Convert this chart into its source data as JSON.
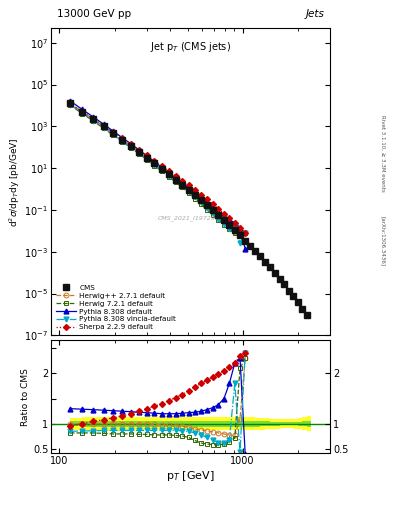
{
  "title_top": "13000 GeV pp",
  "title_right": "Jets",
  "plot_title": "Jet p$_T$ (CMS jets)",
  "xlabel": "p$_T$ [GeV]",
  "ylabel_main": "d$^2\\sigma$/dp$_T$dy [pb/GeV]",
  "ylabel_ratio": "Ratio to CMS",
  "cms_label": "CMS_2021_I1972985",
  "rivet_label": "Rivet 3.1.10, ≥ 3.3M events",
  "arxiv_label": "[arXiv:1306.3436]",
  "cms_x": [
    114,
    133,
    153,
    174,
    196,
    220,
    245,
    272,
    300,
    330,
    362,
    395,
    430,
    468,
    507,
    548,
    592,
    638,
    686,
    737,
    790,
    846,
    905,
    967,
    1032,
    1101,
    1172,
    1248,
    1327,
    1410,
    1497,
    1588,
    1684,
    1784,
    1890,
    2000,
    2116,
    2238
  ],
  "cms_y": [
    13000,
    5000,
    2200,
    1000,
    480,
    230,
    120,
    60,
    32,
    17,
    9.0,
    5.0,
    2.8,
    1.6,
    0.9,
    0.52,
    0.3,
    0.17,
    0.1,
    0.057,
    0.033,
    0.019,
    0.011,
    0.006,
    0.0034,
    0.0019,
    0.0011,
    0.0006,
    0.00033,
    0.00018,
    9.7e-05,
    5.2e-05,
    2.8e-05,
    1.4e-05,
    7.5e-06,
    3.8e-06,
    1.9e-06,
    9e-07
  ],
  "mc_x": [
    114,
    133,
    153,
    174,
    196,
    220,
    245,
    272,
    300,
    330,
    362,
    395,
    430,
    468,
    507,
    548,
    592,
    638,
    686,
    737,
    790,
    846,
    905,
    967,
    1032
  ],
  "herwig_pp_ratio": [
    1.0,
    1.0,
    1.0,
    1.0,
    1.0,
    1.0,
    1.0,
    1.0,
    1.0,
    0.99,
    0.98,
    0.97,
    0.96,
    0.95,
    0.93,
    0.9,
    0.88,
    0.86,
    0.84,
    0.82,
    0.8,
    0.78,
    0.77,
    1.1,
    2.3
  ],
  "herwig7_ratio": [
    0.82,
    0.82,
    0.82,
    0.81,
    0.8,
    0.8,
    0.8,
    0.79,
    0.79,
    0.78,
    0.78,
    0.78,
    0.77,
    0.76,
    0.73,
    0.67,
    0.62,
    0.6,
    0.59,
    0.58,
    0.6,
    0.65,
    0.72,
    2.1,
    2.3
  ],
  "pythia8_ratio": [
    1.3,
    1.29,
    1.28,
    1.27,
    1.26,
    1.25,
    1.24,
    1.23,
    1.22,
    1.21,
    1.2,
    1.2,
    1.2,
    1.21,
    1.22,
    1.23,
    1.25,
    1.28,
    1.32,
    1.38,
    1.5,
    1.8,
    2.2,
    2.3,
    0.4
  ],
  "pythia8v_ratio": [
    0.85,
    0.86,
    0.86,
    0.87,
    0.87,
    0.87,
    0.87,
    0.87,
    0.87,
    0.87,
    0.87,
    0.87,
    0.87,
    0.86,
    0.85,
    0.82,
    0.78,
    0.73,
    0.68,
    0.63,
    0.62,
    0.68,
    1.8,
    0.45,
    2.4
  ],
  "sherpa_ratio": [
    0.95,
    1.0,
    1.05,
    1.08,
    1.12,
    1.16,
    1.2,
    1.25,
    1.3,
    1.35,
    1.4,
    1.46,
    1.52,
    1.58,
    1.65,
    1.72,
    1.8,
    1.87,
    1.93,
    1.98,
    2.05,
    2.12,
    2.2,
    2.35,
    2.4
  ],
  "colors": {
    "cms": "#111111",
    "herwig_pp": "#cc7722",
    "herwig7": "#336600",
    "pythia8": "#0000cc",
    "pythia8v": "#00aacc",
    "sherpa": "#cc0000"
  },
  "band_yellow_x": [
    114,
    133,
    153,
    174,
    196,
    220,
    245,
    272,
    300,
    330,
    362,
    395,
    430,
    468,
    507,
    548,
    592,
    638,
    686,
    737,
    790,
    846,
    905,
    967,
    1032,
    1101,
    1172,
    1248,
    1327,
    1410,
    1497,
    1588,
    1684,
    1784,
    1890,
    2000,
    2116,
    2238
  ],
  "band_yellow_lo": [
    0.88,
    0.87,
    0.86,
    0.86,
    0.86,
    0.86,
    0.86,
    0.87,
    0.87,
    0.87,
    0.87,
    0.87,
    0.87,
    0.87,
    0.87,
    0.87,
    0.87,
    0.87,
    0.87,
    0.87,
    0.87,
    0.87,
    0.87,
    0.87,
    0.87,
    0.87,
    0.88,
    0.88,
    0.89,
    0.9,
    0.9,
    0.91,
    0.91,
    0.91,
    0.9,
    0.89,
    0.87,
    0.85
  ],
  "band_yellow_hi": [
    1.12,
    1.13,
    1.14,
    1.14,
    1.14,
    1.14,
    1.14,
    1.13,
    1.13,
    1.13,
    1.13,
    1.13,
    1.13,
    1.13,
    1.13,
    1.13,
    1.13,
    1.13,
    1.13,
    1.13,
    1.13,
    1.13,
    1.13,
    1.13,
    1.13,
    1.13,
    1.12,
    1.12,
    1.11,
    1.1,
    1.1,
    1.09,
    1.09,
    1.09,
    1.1,
    1.11,
    1.13,
    1.15
  ],
  "band_green_lo": [
    0.95,
    0.94,
    0.94,
    0.94,
    0.94,
    0.94,
    0.94,
    0.94,
    0.94,
    0.94,
    0.94,
    0.94,
    0.94,
    0.94,
    0.94,
    0.94,
    0.94,
    0.94,
    0.94,
    0.94,
    0.94,
    0.94,
    0.94,
    0.94,
    0.94,
    0.94,
    0.94,
    0.95,
    0.95,
    0.96,
    0.96,
    0.97,
    0.97,
    0.97,
    0.97,
    0.96,
    0.95,
    0.94
  ],
  "band_green_hi": [
    1.05,
    1.06,
    1.06,
    1.06,
    1.06,
    1.06,
    1.06,
    1.06,
    1.06,
    1.06,
    1.06,
    1.06,
    1.06,
    1.06,
    1.06,
    1.06,
    1.06,
    1.06,
    1.06,
    1.06,
    1.06,
    1.06,
    1.06,
    1.06,
    1.06,
    1.06,
    1.06,
    1.05,
    1.05,
    1.04,
    1.04,
    1.03,
    1.03,
    1.03,
    1.03,
    1.04,
    1.05,
    1.06
  ]
}
